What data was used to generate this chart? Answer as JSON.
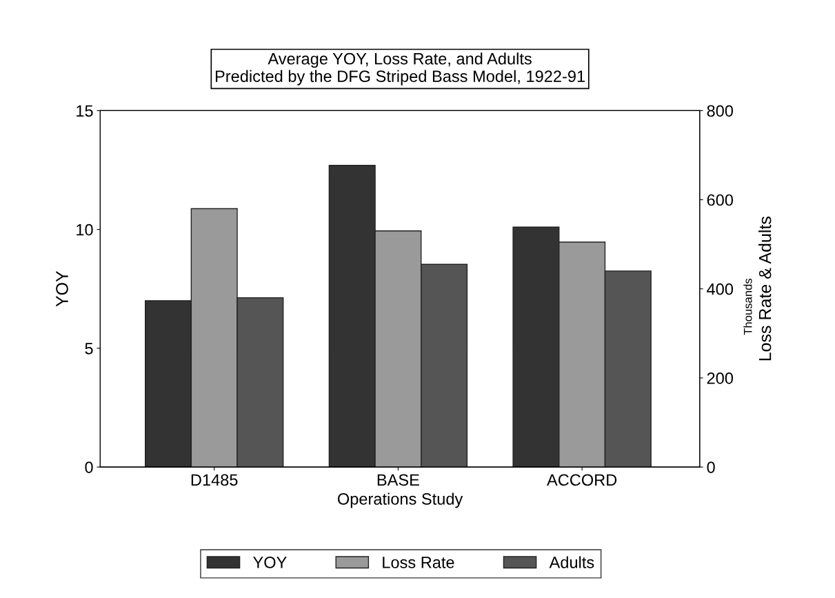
{
  "chart_data": {
    "type": "bar",
    "title": "Average YOY, Loss Rate, and Adults\nPredicted by the DFG Striped Bass Model, 1922-91",
    "xlabel": "Operations Study",
    "ylabel": "YOY",
    "y2label": "Loss Rate & Adults",
    "categories": [
      "D1485",
      "BASE",
      "ACCORD"
    ],
    "series": [
      {
        "name": "YOY",
        "color": "#333333",
        "values": [
          7.0,
          12.7,
          10.1
        ]
      },
      {
        "name": "Loss Rate",
        "color": "#9a9a9a",
        "values": [
          580,
          530,
          505
        ],
        "axis": "y2"
      },
      {
        "name": "Adults",
        "color": "#555555",
        "values": [
          380,
          455,
          440
        ],
        "axis": "y2"
      }
    ],
    "ylim": [
      0,
      15
    ],
    "yticks": [
      0,
      5,
      10,
      15
    ],
    "y2lim": [
      0,
      800
    ],
    "y2ticks": [
      0,
      200,
      400,
      600,
      800
    ],
    "annotations": [
      "Thousands"
    ],
    "grid": false,
    "legend": "bottom"
  }
}
